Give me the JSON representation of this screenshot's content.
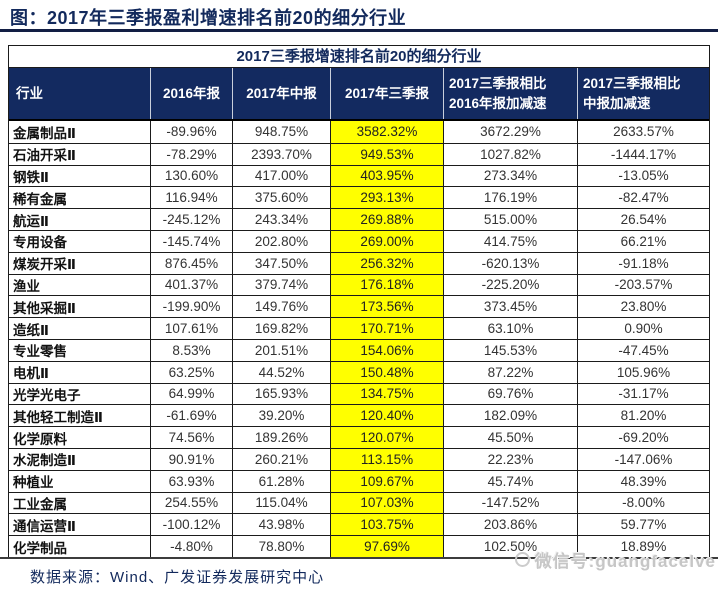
{
  "page": {
    "title": "图：2017年三季报盈利增速排名前20的细分行业",
    "source": "数据来源：Wind、广发证券发展研究中心",
    "watermark": "微信号:guangfacelve"
  },
  "colors": {
    "header_navy": "#132a60",
    "title_navy": "#12295c",
    "highlight_yellow": "#ffff00"
  },
  "chart_data": {
    "type": "table",
    "title": "2017三季报增速排名前20的细分行业",
    "highlighted_column": "2017年三季报",
    "columns": [
      "行业",
      "2016年报",
      "2017年中报",
      "2017年三季报",
      "2017三季报相比\n2016年报加减速",
      "2017三季报相比\n中报加减速"
    ],
    "rows": [
      [
        "金属制品Ⅱ",
        "-89.96%",
        "948.75%",
        "3582.32%",
        "3672.29%",
        "2633.57%"
      ],
      [
        "石油开采Ⅱ",
        "-78.29%",
        "2393.70%",
        "949.53%",
        "1027.82%",
        "-1444.17%"
      ],
      [
        "钢铁Ⅱ",
        "130.60%",
        "417.00%",
        "403.95%",
        "273.34%",
        "-13.05%"
      ],
      [
        "稀有金属",
        "116.94%",
        "375.60%",
        "293.13%",
        "176.19%",
        "-82.47%"
      ],
      [
        "航运Ⅱ",
        "-245.12%",
        "243.34%",
        "269.88%",
        "515.00%",
        "26.54%"
      ],
      [
        "专用设备",
        "-145.74%",
        "202.80%",
        "269.00%",
        "414.75%",
        "66.21%"
      ],
      [
        "煤炭开采Ⅱ",
        "876.45%",
        "347.50%",
        "256.32%",
        "-620.13%",
        "-91.18%"
      ],
      [
        "渔业",
        "401.37%",
        "379.74%",
        "176.18%",
        "-225.20%",
        "-203.57%"
      ],
      [
        "其他采掘Ⅱ",
        "-199.90%",
        "149.76%",
        "173.56%",
        "373.45%",
        "23.80%"
      ],
      [
        "造纸Ⅱ",
        "107.61%",
        "169.82%",
        "170.71%",
        "63.10%",
        "0.90%"
      ],
      [
        "专业零售",
        "8.53%",
        "201.51%",
        "154.06%",
        "145.53%",
        "-47.45%"
      ],
      [
        "电机Ⅱ",
        "63.25%",
        "44.52%",
        "150.48%",
        "87.22%",
        "105.96%"
      ],
      [
        "光学光电子",
        "64.99%",
        "165.93%",
        "134.75%",
        "69.76%",
        "-31.17%"
      ],
      [
        "其他轻工制造Ⅱ",
        "-61.69%",
        "39.20%",
        "120.40%",
        "182.09%",
        "81.20%"
      ],
      [
        "化学原料",
        "74.56%",
        "189.26%",
        "120.07%",
        "45.50%",
        "-69.20%"
      ],
      [
        "水泥制造Ⅱ",
        "90.91%",
        "260.21%",
        "113.15%",
        "22.23%",
        "-147.06%"
      ],
      [
        "种植业",
        "63.93%",
        "61.28%",
        "109.67%",
        "45.74%",
        "48.39%"
      ],
      [
        "工业金属",
        "254.55%",
        "115.04%",
        "107.03%",
        "-147.52%",
        "-8.00%"
      ],
      [
        "通信运营Ⅱ",
        "-100.12%",
        "43.98%",
        "103.75%",
        "203.86%",
        "59.77%"
      ],
      [
        "化学制品",
        "-4.80%",
        "78.80%",
        "97.69%",
        "102.50%",
        "18.89%"
      ]
    ]
  }
}
